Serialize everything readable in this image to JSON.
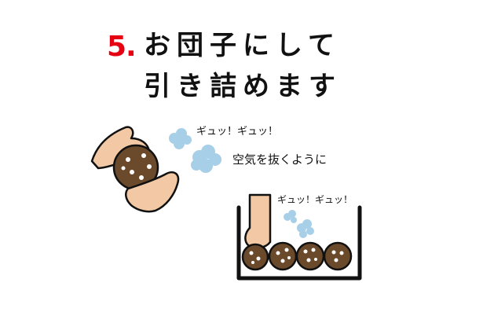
{
  "title": {
    "step_number": "5.",
    "line1": "お団子にして",
    "line2": "引き詰めます"
  },
  "sound_effect_top": "ギュッ！ギュッ！",
  "sound_effect_bottom": "ギュッ！ギュッ！",
  "instruction_note": "空気を抜くように",
  "colors": {
    "accent_red": "#e60012",
    "skin": "#f2c9a4",
    "dough_brown": "#6b4a2b",
    "cloud_blue": "#a8cfe8",
    "outline": "#111111"
  }
}
